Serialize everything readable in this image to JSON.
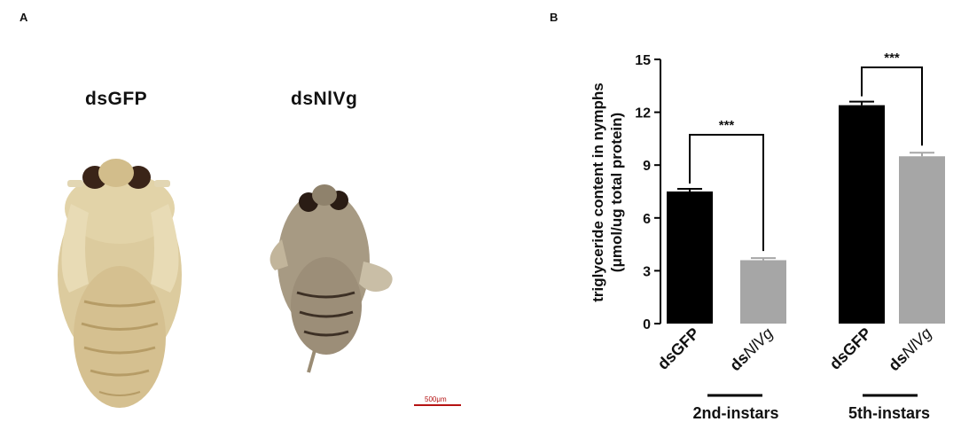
{
  "panel_a": {
    "letter": "A",
    "specimens": [
      {
        "label": "dsGFP"
      },
      {
        "label": "dsNlVg"
      }
    ],
    "scale_bar_text": "500μm",
    "colors": {
      "control_body": "#d9c79a",
      "treated_body": "#a79a83",
      "scale_bar": "#b51212"
    }
  },
  "panel_b": {
    "letter": "B",
    "significance_label": "***",
    "group_labels": [
      "2nd-instars",
      "5th-instars"
    ],
    "bar_labels": [
      {
        "prefix": "dsGFP",
        "italic": ""
      },
      {
        "prefix": "ds",
        "italic": "NlVg"
      },
      {
        "prefix": "dsGFP",
        "italic": ""
      },
      {
        "prefix": "ds",
        "italic": "NlVg"
      }
    ],
    "colors": {
      "dsGFP": "#000000",
      "dsNlVg": "#a6a6a6"
    }
  },
  "chart_data": {
    "type": "bar",
    "title": "",
    "ylabel_line1": "triglyceride content in nymphs",
    "ylabel_line2": "(μmol/ug total protein)",
    "ylim": [
      0,
      15
    ],
    "yticks": [
      0,
      3,
      6,
      9,
      12,
      15
    ],
    "grid": false,
    "legend": "none",
    "groups": [
      "2nd-instars",
      "5th-instars"
    ],
    "categories": [
      "dsGFP",
      "dsNlVg"
    ],
    "series": [
      {
        "group": "2nd-instars",
        "values": [
          7.5,
          3.6
        ],
        "errors": [
          0.15,
          0.12
        ]
      },
      {
        "group": "5th-instars",
        "values": [
          12.4,
          9.5
        ],
        "errors": [
          0.2,
          0.2
        ]
      }
    ],
    "significance": [
      "***",
      "***"
    ]
  }
}
